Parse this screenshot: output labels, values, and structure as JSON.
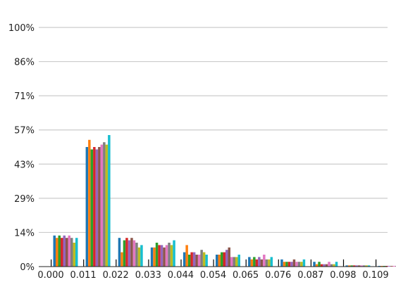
{
  "chart_data": {
    "type": "bar",
    "title": "",
    "xlabel": "",
    "ylabel": "",
    "x_ticks": [
      "0.000",
      "0.011",
      "0.022",
      "0.033",
      "0.044",
      "0.054",
      "0.065",
      "0.076",
      "0.087",
      "0.098",
      "0.109"
    ],
    "y_ticks": [
      "0%",
      "14%",
      "29%",
      "43%",
      "57%",
      "71%",
      "86%",
      "100%"
    ],
    "ylim": [
      0,
      100
    ],
    "grid": true,
    "legend": "none",
    "bins": 11,
    "series_colors": [
      "#1f77b4",
      "#ff7f0e",
      "#2ca02c",
      "#d62728",
      "#9467bd",
      "#8c564b",
      "#e377c2",
      "#7f7f7f",
      "#bcbd22",
      "#17becf"
    ],
    "series": [
      {
        "name": "",
        "values": [
          3,
          3,
          3,
          3,
          3,
          3,
          3,
          3,
          3,
          3,
          3
        ]
      },
      {
        "name": "",
        "values": [
          13,
          50,
          12,
          8,
          6,
          5,
          4,
          3,
          2,
          0.5,
          0.3
        ]
      },
      {
        "name": "",
        "values": [
          12,
          53,
          6,
          8,
          9,
          5,
          3,
          2,
          1,
          0.5,
          0.3
        ]
      },
      {
        "name": "",
        "values": [
          13,
          49,
          11,
          10,
          5,
          6,
          4,
          2,
          2,
          0.5,
          0.3
        ]
      },
      {
        "name": "",
        "values": [
          12,
          50,
          12,
          9,
          6,
          6,
          3,
          2,
          1,
          0.5,
          0.3
        ]
      },
      {
        "name": "",
        "values": [
          13,
          49,
          11,
          9,
          6,
          7,
          4,
          2,
          1,
          0.5,
          0.3
        ]
      },
      {
        "name": "",
        "values": [
          12,
          50,
          12,
          8,
          5,
          8,
          3,
          3,
          1,
          0.5,
          0.3
        ]
      },
      {
        "name": "",
        "values": [
          13,
          51,
          11,
          9,
          5,
          4,
          5,
          2,
          2,
          0.5,
          0.3
        ]
      },
      {
        "name": "",
        "values": [
          12,
          52,
          10,
          10,
          7,
          4,
          3,
          2,
          1,
          0.5,
          0.3
        ]
      },
      {
        "name": "",
        "values": [
          10,
          51,
          8,
          9,
          6,
          4,
          3,
          2,
          1,
          0.5,
          0.3
        ]
      },
      {
        "name": "",
        "values": [
          12,
          55,
          9,
          11,
          5,
          5,
          4,
          3,
          2,
          0.5,
          0.3
        ]
      }
    ]
  }
}
